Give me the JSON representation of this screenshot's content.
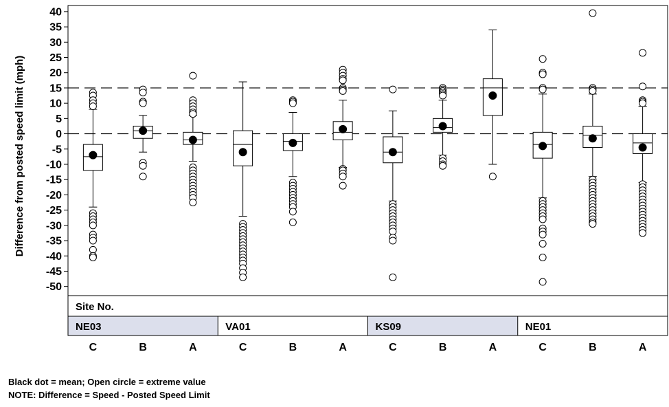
{
  "chart_data": {
    "type": "boxplot",
    "ylabel": "Difference from posted speed limit (mph)",
    "ylim": [
      -53,
      42
    ],
    "yticks": [
      40,
      35,
      30,
      25,
      20,
      15,
      10,
      5,
      0,
      -5,
      -10,
      -15,
      -20,
      -25,
      -30,
      -35,
      -40,
      -45,
      -50
    ],
    "reference_lines": [
      15,
      0
    ],
    "site_header": "Site No.",
    "sites": [
      {
        "name": "NE03",
        "shaded": true,
        "span": [
          0,
          2
        ]
      },
      {
        "name": "VA01",
        "shaded": false,
        "span": [
          3,
          5
        ]
      },
      {
        "name": "KS09",
        "shaded": true,
        "span": [
          6,
          8
        ]
      },
      {
        "name": "NE01",
        "shaded": false,
        "span": [
          9,
          11
        ]
      }
    ],
    "categories": [
      "C",
      "B",
      "A",
      "C",
      "B",
      "A",
      "C",
      "B",
      "A",
      "C",
      "B",
      "A"
    ],
    "boxes": [
      {
        "site": "NE03",
        "group": "C",
        "whisker_low": -24,
        "q1": -12,
        "median": -7.5,
        "q3": -3.5,
        "whisker_high": 8,
        "mean": -7,
        "outliers": [
          13.5,
          12.5,
          11,
          10,
          9,
          -26,
          -27,
          -28,
          -29,
          -30,
          -33,
          -34,
          -35,
          -38,
          -40,
          -40.5
        ]
      },
      {
        "site": "NE03",
        "group": "B",
        "whisker_low": -6,
        "q1": -1.5,
        "median": 1,
        "q3": 2.5,
        "whisker_high": 6,
        "mean": 1,
        "outliers": [
          14.5,
          13.5,
          10.5,
          10,
          -9.5,
          -10.5,
          -14
        ]
      },
      {
        "site": "NE03",
        "group": "A",
        "whisker_low": -9,
        "q1": -3.5,
        "median": -2,
        "q3": 0.5,
        "whisker_high": 6,
        "mean": -2,
        "outliers": [
          19,
          11,
          10,
          9,
          8,
          7,
          6.5,
          -11,
          -12,
          -13,
          -14,
          -15,
          -16,
          -17,
          -18,
          -19,
          -20,
          -21,
          -22.5
        ]
      },
      {
        "site": "VA01",
        "group": "C",
        "whisker_low": -27,
        "q1": -10.5,
        "median": -3.5,
        "q3": 1,
        "whisker_high": 17,
        "mean": -6,
        "outliers": [
          -29.5,
          -30.5,
          -31.5,
          -32.5,
          -33.5,
          -34.5,
          -35.5,
          -36.5,
          -37.5,
          -38.5,
          -39.5,
          -40.5,
          -41.5,
          -42.5,
          -44,
          -45.5,
          -47
        ]
      },
      {
        "site": "VA01",
        "group": "B",
        "whisker_low": -14,
        "q1": -5.5,
        "median": -2.5,
        "q3": 0,
        "whisker_high": 7,
        "mean": -3,
        "outliers": [
          11,
          10.5,
          10,
          -16,
          -17,
          -18,
          -19,
          -20,
          -21,
          -22,
          -23,
          -24,
          -25.5,
          -29
        ]
      },
      {
        "site": "VA01",
        "group": "A",
        "whisker_low": -11,
        "q1": -2,
        "median": 0.5,
        "q3": 4,
        "whisker_high": 11,
        "mean": 1.5,
        "outliers": [
          21,
          20,
          19,
          18,
          17.5,
          15,
          14.5,
          14,
          -11.5,
          -12,
          -13,
          -14,
          -17
        ]
      },
      {
        "site": "KS09",
        "group": "C",
        "whisker_low": -22,
        "q1": -9.5,
        "median": -6,
        "q3": -1,
        "whisker_high": 7.5,
        "mean": -6,
        "outliers": [
          14.5,
          -23,
          -24,
          -25,
          -26,
          -27,
          -28,
          -29,
          -30,
          -31,
          -32,
          -34,
          -35,
          -47
        ]
      },
      {
        "site": "KS09",
        "group": "B",
        "whisker_low": -7,
        "q1": 0.5,
        "median": 2,
        "q3": 5,
        "whisker_high": 11,
        "mean": 2.5,
        "outliers": [
          15,
          14.5,
          14,
          13.5,
          13,
          12.5,
          -8,
          -9,
          -10,
          -10.5
        ]
      },
      {
        "site": "KS09",
        "group": "A",
        "whisker_low": -10,
        "q1": 6,
        "median": 15,
        "q3": 18,
        "whisker_high": 34,
        "mean": 12.5,
        "outliers": [
          -14
        ]
      },
      {
        "site": "NE01",
        "group": "C",
        "whisker_low": -21,
        "q1": -8,
        "median": -3.5,
        "q3": 0.5,
        "whisker_high": 13,
        "mean": -4,
        "outliers": [
          24.5,
          20,
          19.5,
          15,
          14.5,
          -22,
          -23,
          -24,
          -25,
          -26,
          -27,
          -28,
          -31,
          -32,
          -33,
          -36,
          -40.5,
          -48.5
        ]
      },
      {
        "site": "NE01",
        "group": "B",
        "whisker_low": -14,
        "q1": -4.5,
        "median": -0.5,
        "q3": 2.5,
        "whisker_high": 13,
        "mean": -1.5,
        "outliers": [
          39.5,
          15,
          14.5,
          14,
          -15,
          -16,
          -17,
          -18,
          -19,
          -20,
          -21,
          -22,
          -23,
          -24,
          -25,
          -26,
          -27,
          -28,
          -29,
          -29.5
        ]
      },
      {
        "site": "NE01",
        "group": "A",
        "whisker_low": -16,
        "q1": -6.5,
        "median": -3,
        "q3": 0,
        "whisker_high": 9,
        "mean": -4.5,
        "outliers": [
          26.5,
          15.5,
          11,
          10.5,
          10,
          -16.5,
          -17.5,
          -18.5,
          -19.5,
          -20.5,
          -21.5,
          -22.5,
          -23.5,
          -24.5,
          -25.5,
          -26.5,
          -27.5,
          -28.5,
          -29.5,
          -30.5,
          -31.5,
          -32.5
        ]
      }
    ]
  },
  "notes": {
    "line1": "Black dot = mean; Open circle = extreme value",
    "line2": "NOTE: Difference = Speed - Posted Speed Limit"
  }
}
